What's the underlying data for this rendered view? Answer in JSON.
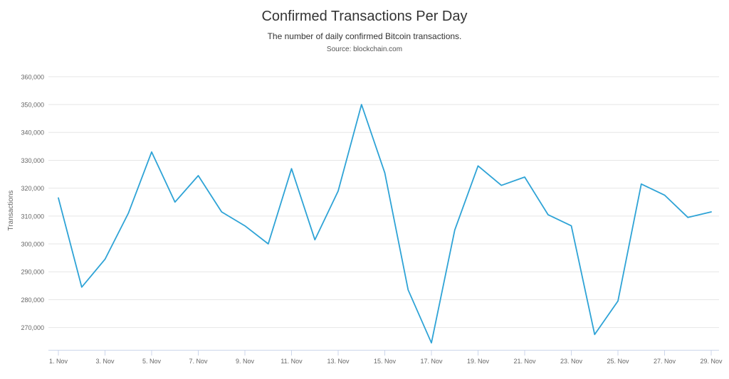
{
  "chart_data": {
    "type": "line",
    "title": "Confirmed Transactions Per Day",
    "subtitle": "The number of daily confirmed Bitcoin transactions.",
    "source": "Source: blockchain.com",
    "ylabel": "Transactions",
    "xlabel": "",
    "ylim": [
      262000,
      362000
    ],
    "y_ticks": [
      270000,
      280000,
      290000,
      300000,
      310000,
      320000,
      330000,
      340000,
      350000,
      360000
    ],
    "y_tick_labels": [
      "270,000",
      "280,000",
      "290,000",
      "300,000",
      "310,000",
      "320,000",
      "330,000",
      "340,000",
      "350,000",
      "360,000"
    ],
    "x_tick_labels": [
      "1. Nov",
      "3. Nov",
      "5. Nov",
      "7. Nov",
      "9. Nov",
      "11. Nov",
      "13. Nov",
      "15. Nov",
      "17. Nov",
      "19. Nov",
      "21. Nov",
      "23. Nov",
      "25. Nov",
      "27. Nov",
      "29. Nov"
    ],
    "x_tick_days": [
      1,
      3,
      5,
      7,
      9,
      11,
      13,
      15,
      17,
      19,
      21,
      23,
      25,
      27,
      29
    ],
    "x": [
      1,
      2,
      3,
      4,
      5,
      6,
      7,
      8,
      9,
      10,
      11,
      12,
      13,
      14,
      15,
      16,
      17,
      18,
      19,
      20,
      21,
      22,
      23,
      24,
      25,
      26,
      27,
      28,
      29
    ],
    "values": [
      316500,
      284500,
      294500,
      311000,
      333000,
      315000,
      324500,
      311500,
      306500,
      300000,
      327000,
      301500,
      319000,
      350000,
      325500,
      283500,
      264500,
      305000,
      328000,
      321000,
      324000,
      310500,
      306500,
      267500,
      279500,
      321500,
      317500,
      309500,
      311500
    ],
    "grid": true,
    "legend": false,
    "color": "#2ea3d6"
  }
}
